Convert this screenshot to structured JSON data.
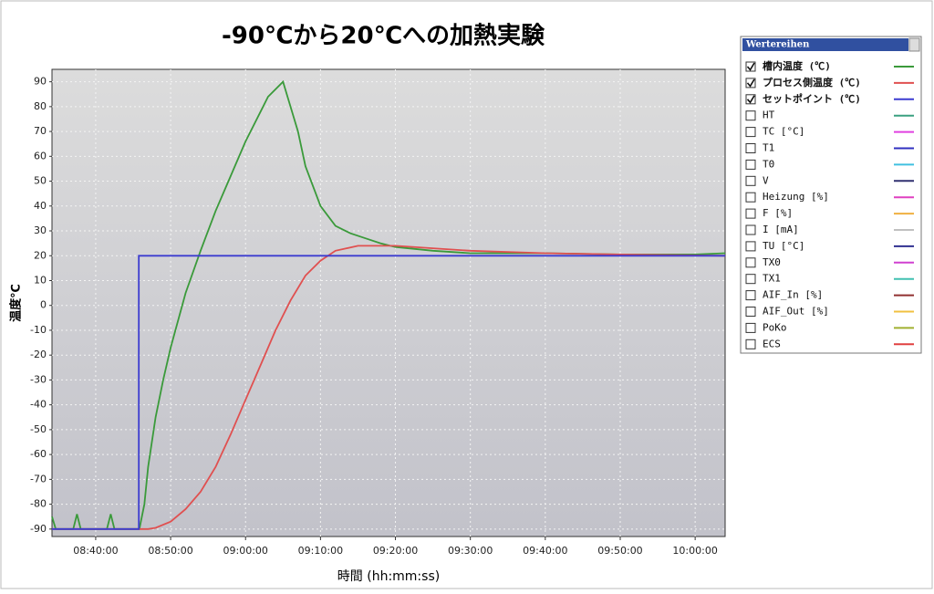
{
  "chart_data": {
    "type": "line",
    "title": "-90℃から20℃への加熱実験",
    "x_label": "時間 (hh:mm:ss)",
    "y_label": "温度℃",
    "legend_title": "Wertereihen",
    "xlim": [
      "08:34:10",
      "10:04:00"
    ],
    "xticks": [
      "08:40:00",
      "08:50:00",
      "09:00:00",
      "09:10:00",
      "09:20:00",
      "09:30:00",
      "09:40:00",
      "09:50:00",
      "10:00:00"
    ],
    "ylim": [
      -93,
      95
    ],
    "yticks": [
      90,
      80,
      70,
      60,
      50,
      40,
      30,
      20,
      10,
      0,
      -10,
      -20,
      -30,
      -40,
      -50,
      -60,
      -70,
      -80,
      -90
    ],
    "grid": true,
    "series": [
      {
        "name": "槽内温度 (℃)",
        "color": "#3a9a3a",
        "visible": true,
        "x": [
          "08:34:10",
          "08:34:40",
          "08:37:00",
          "08:37:30",
          "08:38:00",
          "08:41:30",
          "08:42:00",
          "08:42:30",
          "08:45:50",
          "08:46:30",
          "08:47:00",
          "08:48:00",
          "08:49:00",
          "08:50:00",
          "08:52:00",
          "08:54:00",
          "08:56:00",
          "08:58:00",
          "09:00:00",
          "09:02:00",
          "09:03:00",
          "09:05:00",
          "09:07:00",
          "09:08:00",
          "09:10:00",
          "09:12:00",
          "09:14:00",
          "09:16:00",
          "09:18:00",
          "09:20:00",
          "09:25:00",
          "09:30:00",
          "09:40:00",
          "09:50:00",
          "10:00:00",
          "10:04:00"
        ],
        "values": [
          -85,
          -90,
          -90,
          -84,
          -90,
          -90,
          -84,
          -90,
          -90,
          -80,
          -65,
          -45,
          -30,
          -17,
          5,
          22,
          38,
          52,
          66,
          78,
          84,
          90,
          70,
          56,
          40,
          32,
          29,
          27,
          25,
          23.5,
          22,
          21,
          21,
          20.5,
          20.5,
          21
        ]
      },
      {
        "name": "プロセス側温度 (℃)",
        "color": "#e05050",
        "visible": true,
        "x": [
          "08:34:10",
          "08:47:00",
          "08:48:00",
          "08:50:00",
          "08:52:00",
          "08:54:00",
          "08:56:00",
          "08:58:00",
          "09:00:00",
          "09:02:00",
          "09:04:00",
          "09:06:00",
          "09:08:00",
          "09:10:00",
          "09:12:00",
          "09:15:00",
          "09:20:00",
          "09:25:00",
          "09:30:00",
          "09:40:00",
          "09:50:00",
          "10:04:00"
        ],
        "values": [
          -90,
          -90,
          -89.5,
          -87,
          -82,
          -75,
          -65,
          -52,
          -38,
          -24,
          -10,
          2,
          12,
          18,
          22,
          24,
          24,
          23,
          22,
          21,
          20.5,
          20
        ]
      },
      {
        "name": "セットポイント (℃)",
        "color": "#3c3cd0",
        "visible": true,
        "x": [
          "08:34:10",
          "08:45:45",
          "08:45:45",
          "10:04:00"
        ],
        "values": [
          -90,
          -90,
          20,
          20
        ]
      },
      {
        "name": "HT",
        "color": "#3aa080",
        "visible": false
      },
      {
        "name": "TC [°C]",
        "color": "#e040e0",
        "visible": false
      },
      {
        "name": "T1",
        "color": "#3030c0",
        "visible": false
      },
      {
        "name": "T0",
        "color": "#40c0e0",
        "visible": false
      },
      {
        "name": "V",
        "color": "#303070",
        "visible": false
      },
      {
        "name": "Heizung [%]",
        "color": "#e040c0",
        "visible": false
      },
      {
        "name": "F [%]",
        "color": "#f0b040",
        "visible": false
      },
      {
        "name": "I [mA]",
        "color": "#c0c0c0",
        "visible": false
      },
      {
        "name": "TU [°C]",
        "color": "#303090",
        "visible": false
      },
      {
        "name": "TX0",
        "color": "#d040d0",
        "visible": false
      },
      {
        "name": "TX1",
        "color": "#40c0b0",
        "visible": false
      },
      {
        "name": "AIF_In [%]",
        "color": "#903030",
        "visible": false
      },
      {
        "name": "AIF_Out [%]",
        "color": "#f0c040",
        "visible": false
      },
      {
        "name": "PoKo",
        "color": "#a0b030",
        "visible": false
      },
      {
        "name": "ECS",
        "color": "#e04040",
        "visible": false
      }
    ]
  }
}
